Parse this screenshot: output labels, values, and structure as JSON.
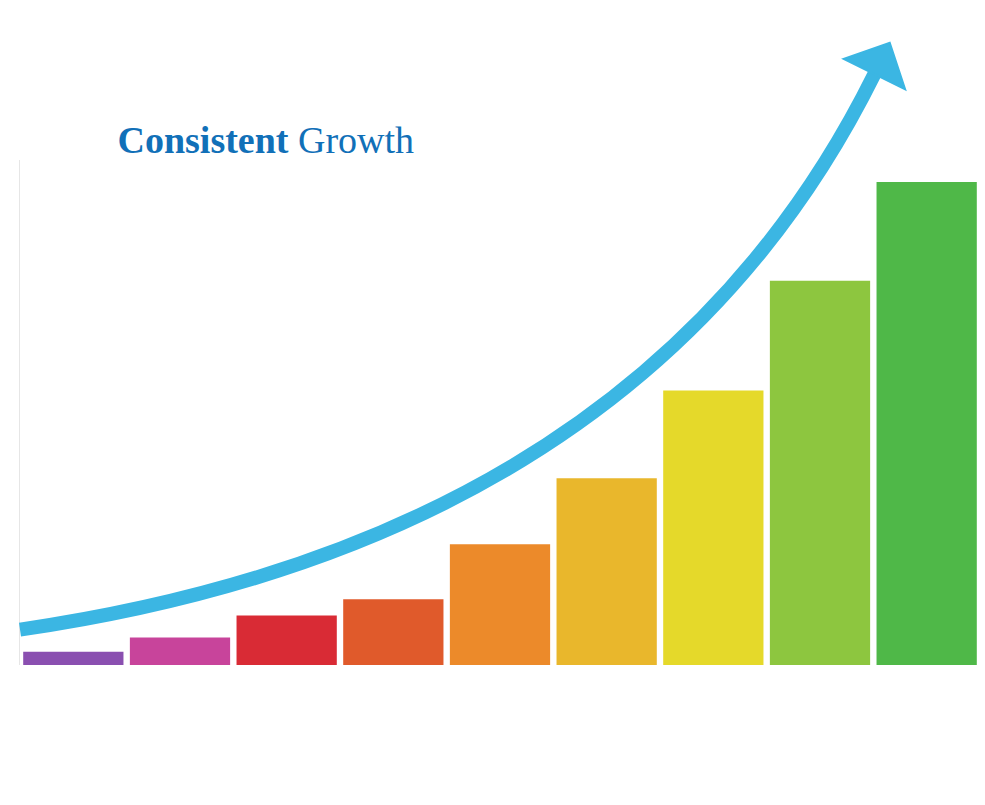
{
  "chart_data": {
    "type": "bar",
    "title": "Consistent Growth",
    "categories": [
      null,
      null,
      null,
      null,
      null,
      null,
      null,
      null,
      null
    ],
    "values": [
      12,
      25,
      45,
      60,
      110,
      170,
      250,
      350,
      440
    ],
    "colors": [
      "#8a4fb0",
      "#c8449b",
      "#d92b35",
      "#e05a2b",
      "#ec8a2a",
      "#e9b72c",
      "#e5d92a",
      "#8dc63f",
      "#4fb848"
    ],
    "ylim": [
      0,
      460
    ],
    "grid": false,
    "tick_labels": false
  }
}
